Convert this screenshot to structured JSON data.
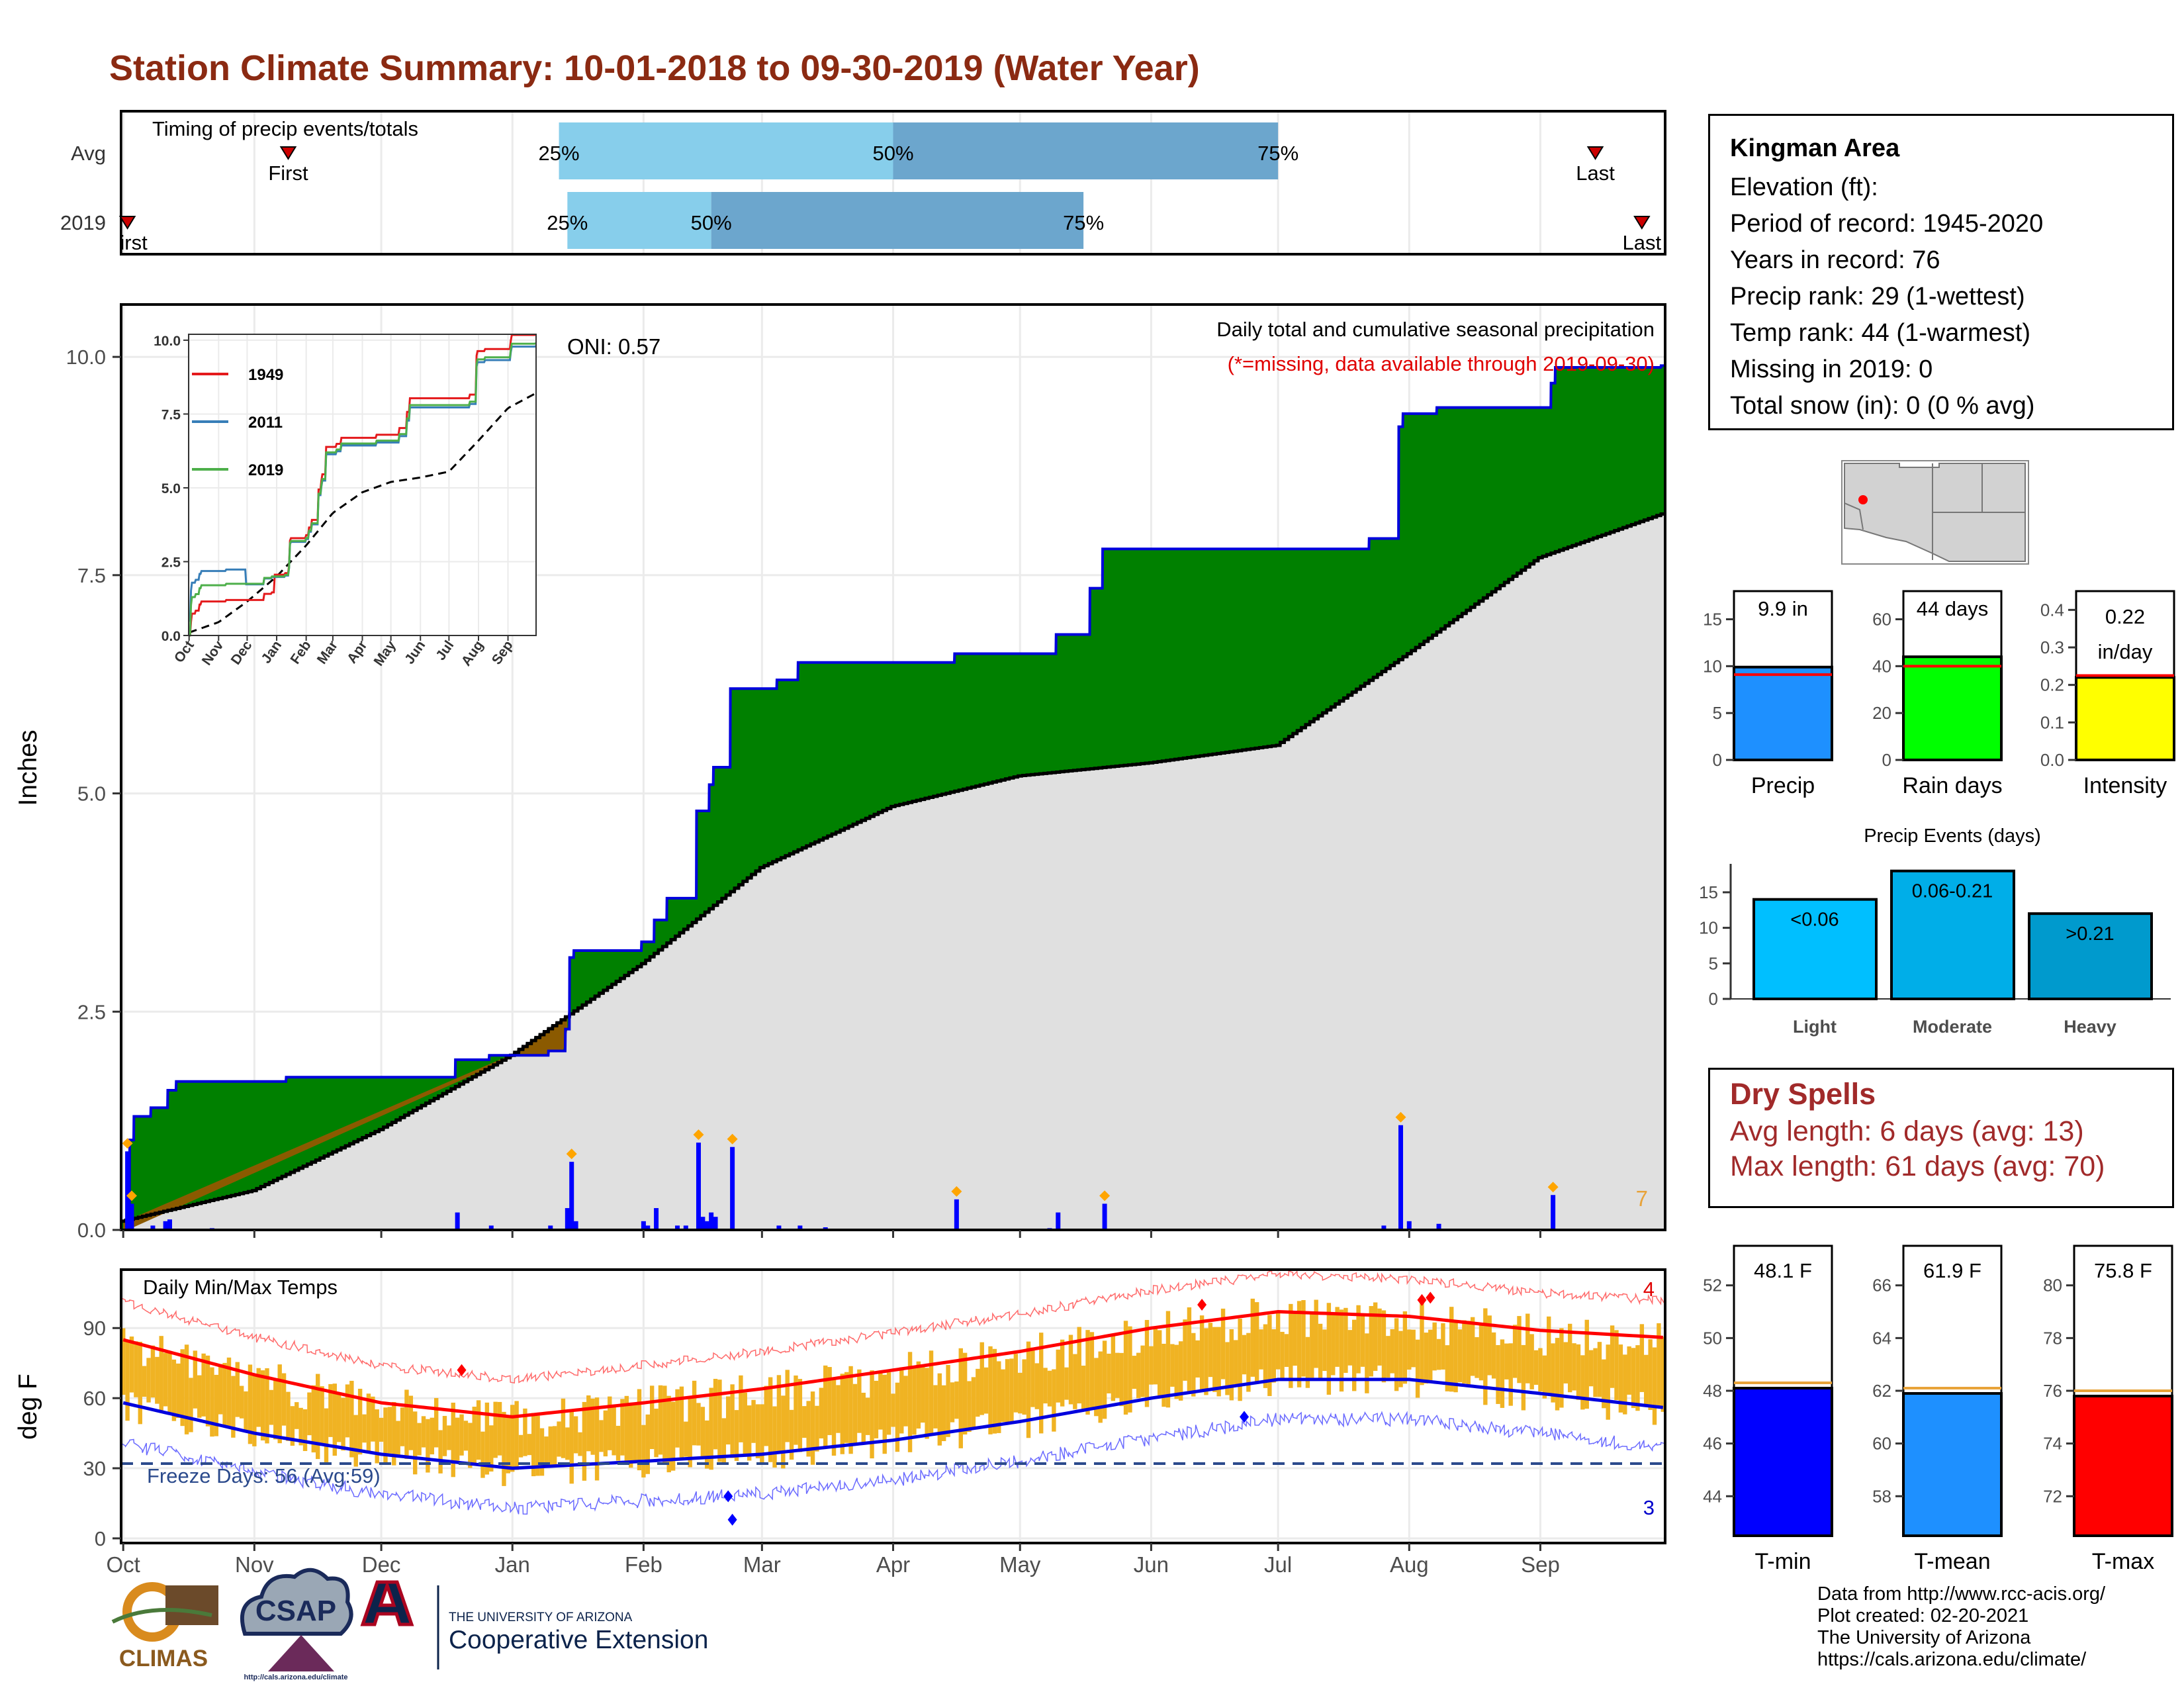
{
  "title": "Station Climate Summary: 10-01-2018 to 09-30-2019 (Water Year)",
  "months": [
    "Oct",
    "Nov",
    "Dec",
    "Jan",
    "Feb",
    "Mar",
    "Apr",
    "May",
    "Jun",
    "Jul",
    "Aug",
    "Sep"
  ],
  "timing": {
    "panel_label": "Timing of precip events/totals",
    "rows": [
      {
        "name": "Avg",
        "first_label": "First",
        "last_label": "Last",
        "q25": "25%",
        "q50": "50%",
        "q75": "75%"
      },
      {
        "name": "2019",
        "first_label": "First",
        "last_label": "Last",
        "q25": "25%",
        "q50": "50%",
        "q75": "75%"
      }
    ]
  },
  "precip": {
    "ylabel": "Inches",
    "yticks": [
      "0.0",
      "2.5",
      "5.0",
      "7.5",
      "10.0"
    ],
    "oni": "ONI: 0.57",
    "header": "Daily total and cumulative seasonal precipitation",
    "note": "(*=missing, data available through 2019-09-30)",
    "heavy_count": "7"
  },
  "inset": {
    "yticks": [
      "0.0",
      "2.5",
      "5.0",
      "7.5",
      "10.0"
    ],
    "legend": [
      {
        "name": "1949",
        "color": "#e41a1c"
      },
      {
        "name": "2011",
        "color": "#377eb8"
      },
      {
        "name": "2019",
        "color": "#4daf4a"
      }
    ],
    "months": [
      "Oct",
      "Nov",
      "Dec",
      "Jan",
      "Feb",
      "Mar",
      "Apr",
      "May",
      "Jun",
      "Jul",
      "Aug",
      "Sep"
    ]
  },
  "temps": {
    "ylabel": "deg F",
    "label": "Daily Min/Max Temps",
    "yticks": [
      "0",
      "30",
      "60",
      "90"
    ],
    "freeze": "Freeze Days: 56 (Avg:59)",
    "record_high_count": "4",
    "record_low_count": "3"
  },
  "station": {
    "name": "Kingman Area",
    "lines": [
      "Elevation (ft):",
      "Period of record: 1945-2020",
      "Years in record: 76",
      "Precip rank: 29 (1-wettest)",
      "Temp rank: 44 (1-warmest)",
      "Missing in 2019: 0",
      "Total snow (in): 0 (0 % avg)"
    ]
  },
  "precip_bars": [
    {
      "label": "Precip",
      "value_label": "9.9 in",
      "value": 9.9,
      "avg": 9.1,
      "ticks": [
        "0",
        "5",
        "10",
        "15"
      ],
      "max": 18,
      "color": "#1e90ff"
    },
    {
      "label": "Rain days",
      "value_label": "44 days",
      "value": 44,
      "avg": 40,
      "ticks": [
        "0",
        "20",
        "40",
        "60"
      ],
      "max": 72,
      "color": "#00ff00"
    },
    {
      "label": "Intensity",
      "value_label": "0.22 in/day",
      "value": 0.22,
      "avg": 0.225,
      "ticks": [
        "0.0",
        "0.1",
        "0.2",
        "0.3",
        "0.4"
      ],
      "max": 0.45,
      "color": "#ffff00"
    }
  ],
  "events": {
    "title": "Precip Events (days)",
    "ticks": [
      "0",
      "5",
      "10",
      "15"
    ],
    "bars": [
      {
        "label": "Light",
        "range": "<0.06",
        "value": 14,
        "color": "#00bfff"
      },
      {
        "label": "Moderate",
        "range": "0.06-0.21",
        "value": 18,
        "color": "#00aee8"
      },
      {
        "label": "Heavy",
        "range": ">0.21",
        "value": 12,
        "color": "#009acd"
      }
    ]
  },
  "dry_spells": {
    "title": "Dry Spells",
    "avg": "Avg length: 6 days (avg: 13)",
    "max": "Max length: 61 days (avg: 70)"
  },
  "temp_bars": [
    {
      "label": "T-min",
      "value_label": "48.1 F",
      "value": 48.1,
      "avg": 48.3,
      "min": 42.5,
      "max": 53.5,
      "ticks": [
        "44",
        "46",
        "48",
        "50",
        "52"
      ],
      "color": "#0000ff"
    },
    {
      "label": "T-mean",
      "value_label": "61.9 F",
      "value": 61.9,
      "avg": 62.1,
      "min": 56.5,
      "max": 67.5,
      "ticks": [
        "58",
        "60",
        "62",
        "64",
        "66"
      ],
      "color": "#1e90ff"
    },
    {
      "label": "T-max",
      "value_label": "75.8 F",
      "value": 75.8,
      "avg": 76.0,
      "min": 70.5,
      "max": 81.5,
      "ticks": [
        "72",
        "74",
        "76",
        "78",
        "80"
      ],
      "color": "#ff0000"
    }
  ],
  "credits": [
    "Data from http://www.rcc-acis.org/",
    "Plot created: 02-20-2021",
    "The University of Arizona",
    "https://cals.arizona.edu/climate/"
  ],
  "logos": {
    "climas": "CLIMAS",
    "csap": "CSAP",
    "csap_url": "http://cals.arizona.edu/climate",
    "ua_top": "THE UNIVERSITY OF ARIZONA",
    "ua_bottom": "Cooperative Extension"
  },
  "chart_data": [
    {
      "type": "bar",
      "title": "Timing of precip events/totals",
      "categories": [
        "Avg",
        "2019"
      ],
      "series": [
        {
          "name": "Avg",
          "first": "2018-11-09",
          "q25": "2019-01-12",
          "q50": "2019-04-01",
          "q75": "2019-07-01",
          "last": "2019-09-14"
        },
        {
          "name": "2019",
          "first": "2018-10-02",
          "q25": "2019-01-14",
          "q50": "2019-02-17",
          "q75": "2019-05-16",
          "last": "2019-09-25"
        }
      ]
    },
    {
      "type": "area",
      "title": "Daily total and cumulative seasonal precipitation",
      "ylabel": "Inches",
      "ylim": [
        0,
        10.6
      ],
      "x_range": [
        "2018-10-01",
        "2019-09-30"
      ],
      "cumulative_2019": [
        {
          "date": "2018-10-01",
          "in": 0.0
        },
        {
          "date": "2018-10-03",
          "in": 1.03
        },
        {
          "date": "2018-10-04",
          "in": 1.3
        },
        {
          "date": "2018-10-08",
          "in": 1.4
        },
        {
          "date": "2018-10-12",
          "in": 1.6
        },
        {
          "date": "2018-10-14",
          "in": 1.7
        },
        {
          "date": "2018-11-09",
          "in": 1.75
        },
        {
          "date": "2018-12-19",
          "in": 1.95
        },
        {
          "date": "2018-12-27",
          "in": 2.0
        },
        {
          "date": "2019-01-10",
          "in": 2.05
        },
        {
          "date": "2019-01-14",
          "in": 2.3
        },
        {
          "date": "2019-01-15",
          "in": 3.12
        },
        {
          "date": "2019-01-16",
          "in": 3.2
        },
        {
          "date": "2019-02-01",
          "in": 3.3
        },
        {
          "date": "2019-02-04",
          "in": 3.55
        },
        {
          "date": "2019-02-07",
          "in": 3.8
        },
        {
          "date": "2019-02-14",
          "in": 4.8
        },
        {
          "date": "2019-02-17",
          "in": 5.1
        },
        {
          "date": "2019-02-18",
          "in": 5.3
        },
        {
          "date": "2019-02-22",
          "in": 6.2
        },
        {
          "date": "2019-03-05",
          "in": 6.3
        },
        {
          "date": "2019-03-10",
          "in": 6.5
        },
        {
          "date": "2019-04-16",
          "in": 6.6
        },
        {
          "date": "2019-05-10",
          "in": 6.82
        },
        {
          "date": "2019-05-18",
          "in": 7.35
        },
        {
          "date": "2019-05-21",
          "in": 7.8
        },
        {
          "date": "2019-07-23",
          "in": 7.92
        },
        {
          "date": "2019-07-30",
          "in": 9.2
        },
        {
          "date": "2019-07-31",
          "in": 9.35
        },
        {
          "date": "2019-08-08",
          "in": 9.42
        },
        {
          "date": "2019-09-04",
          "in": 9.7
        },
        {
          "date": "2019-09-05",
          "in": 9.88
        },
        {
          "date": "2019-09-30",
          "in": 9.9
        }
      ],
      "cumulative_avg": [
        {
          "date": "2018-10-01",
          "in": 0.1
        },
        {
          "date": "2018-11-01",
          "in": 0.45
        },
        {
          "date": "2018-12-01",
          "in": 1.15
        },
        {
          "date": "2019-01-01",
          "in": 2.0
        },
        {
          "date": "2019-02-01",
          "in": 3.05
        },
        {
          "date": "2019-03-01",
          "in": 4.15
        },
        {
          "date": "2019-04-01",
          "in": 4.85
        },
        {
          "date": "2019-05-01",
          "in": 5.2
        },
        {
          "date": "2019-06-01",
          "in": 5.35
        },
        {
          "date": "2019-07-01",
          "in": 5.55
        },
        {
          "date": "2019-08-01",
          "in": 6.6
        },
        {
          "date": "2019-09-01",
          "in": 7.7
        },
        {
          "date": "2019-09-30",
          "in": 8.2
        }
      ],
      "daily": [
        {
          "date": "2018-10-02",
          "in": 0.9
        },
        {
          "date": "2018-10-03",
          "in": 0.3
        },
        {
          "date": "2018-10-08",
          "in": 0.05
        },
        {
          "date": "2018-10-11",
          "in": 0.1
        },
        {
          "date": "2018-10-12",
          "in": 0.12
        },
        {
          "date": "2018-10-22",
          "in": 0.02
        },
        {
          "date": "2018-12-19",
          "in": 0.2
        },
        {
          "date": "2018-12-27",
          "in": 0.05
        },
        {
          "date": "2019-01-10",
          "in": 0.05
        },
        {
          "date": "2019-01-14",
          "in": 0.25
        },
        {
          "date": "2019-01-15",
          "in": 0.78
        },
        {
          "date": "2019-01-16",
          "in": 0.1
        },
        {
          "date": "2019-02-01",
          "in": 0.1
        },
        {
          "date": "2019-02-02",
          "in": 0.05
        },
        {
          "date": "2019-02-04",
          "in": 0.25
        },
        {
          "date": "2019-02-09",
          "in": 0.05
        },
        {
          "date": "2019-02-11",
          "in": 0.05
        },
        {
          "date": "2019-02-14",
          "in": 1.0
        },
        {
          "date": "2019-02-15",
          "in": 0.15
        },
        {
          "date": "2019-02-16",
          "in": 0.1
        },
        {
          "date": "2019-02-17",
          "in": 0.2
        },
        {
          "date": "2019-02-18",
          "in": 0.15
        },
        {
          "date": "2019-02-22",
          "in": 0.95
        },
        {
          "date": "2019-03-05",
          "in": 0.05
        },
        {
          "date": "2019-03-10",
          "in": 0.05
        },
        {
          "date": "2019-03-16",
          "in": 0.03
        },
        {
          "date": "2019-04-16",
          "in": 0.35
        },
        {
          "date": "2019-05-08",
          "in": 0.02
        },
        {
          "date": "2019-05-10",
          "in": 0.2
        },
        {
          "date": "2019-05-21",
          "in": 0.3
        },
        {
          "date": "2019-07-26",
          "in": 0.05
        },
        {
          "date": "2019-07-30",
          "in": 1.2
        },
        {
          "date": "2019-08-01",
          "in": 0.1
        },
        {
          "date": "2019-08-08",
          "in": 0.07
        },
        {
          "date": "2019-09-04",
          "in": 0.4
        }
      ]
    },
    {
      "type": "line",
      "title": "Daily Min/Max Temps",
      "ylabel": "deg F",
      "ylim": [
        -2,
        115
      ],
      "freeze_line": 32,
      "avg_max": [
        {
          "date": "2018-10-01",
          "F": 85
        },
        {
          "date": "2018-11-01",
          "F": 70
        },
        {
          "date": "2018-12-01",
          "F": 58
        },
        {
          "date": "2019-01-01",
          "F": 52
        },
        {
          "date": "2019-02-01",
          "F": 58
        },
        {
          "date": "2019-03-01",
          "F": 64
        },
        {
          "date": "2019-04-01",
          "F": 72
        },
        {
          "date": "2019-05-01",
          "F": 80
        },
        {
          "date": "2019-06-01",
          "F": 90
        },
        {
          "date": "2019-07-01",
          "F": 97
        },
        {
          "date": "2019-08-01",
          "F": 95
        },
        {
          "date": "2019-09-01",
          "F": 89
        },
        {
          "date": "2019-09-30",
          "F": 86
        }
      ],
      "avg_min": [
        {
          "date": "2018-10-01",
          "F": 58
        },
        {
          "date": "2018-11-01",
          "F": 45
        },
        {
          "date": "2018-12-01",
          "F": 36
        },
        {
          "date": "2019-01-01",
          "F": 30
        },
        {
          "date": "2019-02-01",
          "F": 33
        },
        {
          "date": "2019-03-01",
          "F": 36
        },
        {
          "date": "2019-04-01",
          "F": 42
        },
        {
          "date": "2019-05-01",
          "F": 50
        },
        {
          "date": "2019-06-01",
          "F": 60
        },
        {
          "date": "2019-07-01",
          "F": 68
        },
        {
          "date": "2019-08-01",
          "F": 68
        },
        {
          "date": "2019-09-01",
          "F": 62
        },
        {
          "date": "2019-09-30",
          "F": 56
        }
      ],
      "record_highs": [
        {
          "date": "2018-12-20",
          "F": 72
        },
        {
          "date": "2019-06-13",
          "F": 100
        },
        {
          "date": "2019-08-04",
          "F": 102
        },
        {
          "date": "2019-08-06",
          "F": 103
        }
      ],
      "record_lows": [
        {
          "date": "2019-02-22",
          "F": 8
        },
        {
          "date": "2019-06-23",
          "F": 52
        },
        {
          "date": "2019-02-21",
          "F": 18
        }
      ]
    },
    {
      "type": "bar",
      "title": "",
      "categories": [
        "Precip",
        "Rain days",
        "Intensity"
      ],
      "values": [
        9.9,
        44,
        0.22
      ]
    },
    {
      "type": "bar",
      "title": "Precip Events (days)",
      "categories": [
        "Light",
        "Moderate",
        "Heavy"
      ],
      "values": [
        14,
        18,
        12
      ]
    },
    {
      "type": "bar",
      "title": "",
      "categories": [
        "T-min",
        "T-mean",
        "T-max"
      ],
      "values": [
        48.1,
        61.9,
        75.8
      ]
    }
  ]
}
